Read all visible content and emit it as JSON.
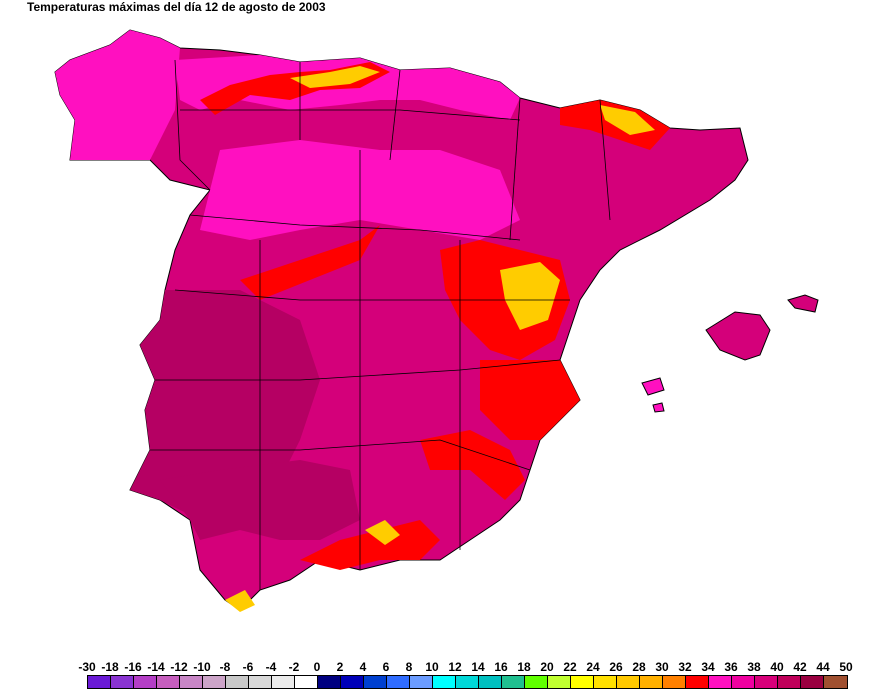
{
  "title": "Temperaturas máximas del día 12 de agosto de 2003",
  "map": {
    "colors": {
      "hot": "#d4007a",
      "very_hot": "#b50063",
      "warm": "#ff0fc0",
      "mild": "#ff0000",
      "cool": "#ffcc00",
      "border": "#000000"
    }
  },
  "legend": {
    "ticks": [
      "-30",
      "-18",
      "-16",
      "-14",
      "-12",
      "-10",
      "-8",
      "-6",
      "-4",
      "-2",
      "0",
      "2",
      "4",
      "6",
      "8",
      "10",
      "12",
      "14",
      "16",
      "18",
      "20",
      "22",
      "24",
      "26",
      "28",
      "30",
      "32",
      "34",
      "36",
      "38",
      "40",
      "42",
      "44",
      "50"
    ],
    "colors": [
      "#6a1ad6",
      "#8a34d2",
      "#b43ec6",
      "#c65ebe",
      "#c886c6",
      "#cca4c8",
      "#c8c8c8",
      "#d8d8d8",
      "#ebebeb",
      "#ffffff",
      "#000080",
      "#0000b8",
      "#0040d0",
      "#2f6cff",
      "#6b9cff",
      "#00ffff",
      "#00d8d8",
      "#00c0c0",
      "#20c090",
      "#60ff00",
      "#c0ff30",
      "#ffff00",
      "#ffe000",
      "#ffc800",
      "#ffb000",
      "#ff8000",
      "#ff0000",
      "#ff10c0",
      "#f000a0",
      "#d8007a",
      "#c0005a",
      "#9a0040",
      "#a05030"
    ]
  }
}
